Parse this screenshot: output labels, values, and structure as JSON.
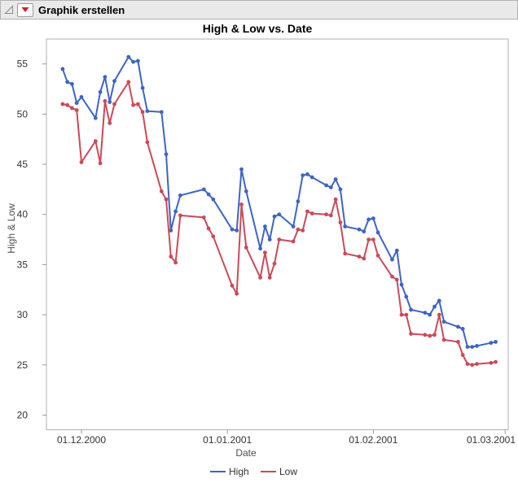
{
  "window": {
    "title": "Graphik erstellen"
  },
  "header": {
    "disclosure_icon": "open-disclosure-triangle",
    "menu_icon": "red-triangle-down",
    "icon_colors": {
      "red_triangle": "#cf2030",
      "disclosure_gray": "#8a8a8a"
    }
  },
  "chart_data": {
    "type": "line",
    "title": "High & Low vs. Date",
    "xlabel": "Date",
    "ylabel": "High & Low",
    "grid": false,
    "legend_position": "bottom",
    "x_tick_labels": [
      "01.12.2000",
      "01.01.2001",
      "01.02.2001",
      "01.03.2001"
    ],
    "y_ticks": [
      20,
      25,
      30,
      35,
      40,
      45,
      50,
      55
    ],
    "ylim": [
      18.5,
      57.5
    ],
    "colors": {
      "high": "#3e64c4",
      "low": "#ca4a57",
      "axis": "#aeb2b6",
      "tick": "#9a9a9a"
    },
    "dates": [
      "27.11.2000",
      "28.11.2000",
      "29.11.2000",
      "30.11.2000",
      "01.12.2000",
      "04.12.2000",
      "05.12.2000",
      "06.12.2000",
      "07.12.2000",
      "08.12.2000",
      "11.12.2000",
      "12.12.2000",
      "13.12.2000",
      "14.12.2000",
      "15.12.2000",
      "18.12.2000",
      "19.12.2000",
      "20.12.2000",
      "21.12.2000",
      "22.12.2000",
      "27.12.2000",
      "28.12.2000",
      "29.12.2000",
      "02.01.2001",
      "03.01.2001",
      "04.01.2001",
      "05.01.2001",
      "08.01.2001",
      "09.01.2001",
      "10.01.2001",
      "11.01.2001",
      "12.01.2001",
      "15.01.2001",
      "16.01.2001",
      "17.01.2001",
      "18.01.2001",
      "19.01.2001",
      "22.01.2001",
      "23.01.2001",
      "24.01.2001",
      "25.01.2001",
      "26.01.2001",
      "29.01.2001",
      "30.01.2001",
      "31.01.2001",
      "01.02.2001",
      "02.02.2001",
      "05.02.2001",
      "06.02.2001",
      "07.02.2001",
      "08.02.2001",
      "09.02.2001",
      "12.02.2001",
      "13.02.2001",
      "14.02.2001",
      "15.02.2001",
      "16.02.2001",
      "19.02.2001",
      "20.02.2001",
      "21.02.2001",
      "22.02.2001",
      "23.02.2001",
      "26.02.2001",
      "27.02.2001"
    ],
    "series": [
      {
        "name": "High",
        "color_key": "high",
        "values": [
          54.5,
          53.2,
          53.0,
          51.1,
          51.7,
          49.6,
          52.2,
          53.7,
          51.2,
          53.3,
          55.7,
          55.2,
          55.3,
          52.6,
          50.3,
          50.2,
          46.0,
          38.4,
          40.3,
          41.9,
          42.5,
          42.0,
          41.5,
          38.5,
          38.4,
          44.5,
          42.3,
          36.6,
          38.8,
          37.5,
          39.8,
          40.0,
          38.8,
          41.3,
          43.9,
          44.0,
          43.7,
          42.9,
          42.7,
          43.5,
          42.5,
          38.8,
          38.5,
          38.3,
          39.5,
          39.6,
          38.2,
          35.5,
          36.4,
          33.0,
          31.8,
          30.5,
          30.2,
          30.0,
          30.8,
          31.4,
          29.3,
          28.8,
          28.6,
          26.8,
          26.8,
          26.9,
          27.2,
          27.3
        ]
      },
      {
        "name": "Low",
        "color_key": "low",
        "values": [
          51.0,
          50.9,
          50.6,
          50.4,
          45.2,
          47.3,
          45.1,
          51.3,
          49.1,
          51.0,
          53.2,
          50.9,
          51.0,
          50.2,
          47.2,
          42.3,
          41.5,
          35.8,
          35.2,
          39.9,
          39.7,
          38.6,
          37.8,
          32.9,
          32.1,
          41.0,
          36.7,
          33.7,
          36.2,
          33.7,
          35.1,
          37.5,
          37.3,
          38.5,
          38.4,
          40.3,
          40.1,
          40.0,
          39.9,
          41.5,
          39.2,
          36.1,
          35.8,
          35.6,
          37.5,
          37.5,
          35.9,
          33.8,
          33.5,
          30.0,
          30.0,
          28.1,
          28.0,
          27.9,
          28.0,
          30.0,
          27.5,
          27.3,
          26.0,
          25.1,
          25.0,
          25.1,
          25.2,
          25.3
        ]
      }
    ]
  }
}
